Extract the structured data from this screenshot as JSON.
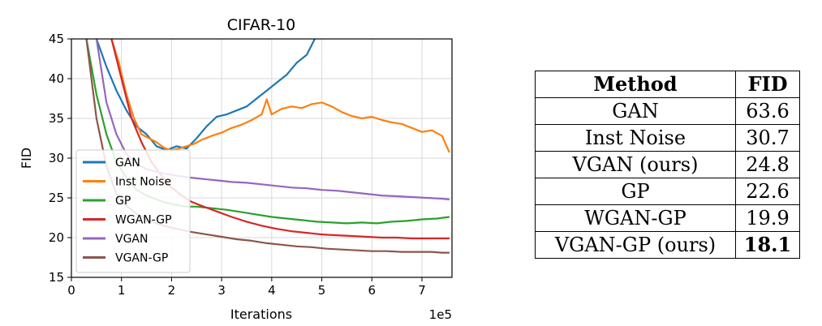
{
  "chart_data": {
    "type": "line",
    "title": "CIFAR-10",
    "xlabel": "Iterations",
    "ylabel": "FID",
    "x_scale_label": "1e5",
    "xlim": [
      0,
      7.6
    ],
    "ylim": [
      15,
      45
    ],
    "x_ticks": [
      0,
      1,
      2,
      3,
      4,
      5,
      6,
      7
    ],
    "y_ticks": [
      15,
      20,
      25,
      30,
      35,
      40,
      45
    ],
    "grid": true,
    "legend_position": "lower-left",
    "series": [
      {
        "name": "GAN",
        "color": "#1f77b4",
        "x": [
          0.5,
          0.7,
          0.9,
          1.1,
          1.3,
          1.5,
          1.7,
          1.9,
          2.1,
          2.3,
          2.5,
          2.7,
          2.9,
          3.1,
          3.3,
          3.5,
          3.7,
          3.9,
          4.1,
          4.3,
          4.5,
          4.7,
          4.9
        ],
        "y": [
          45,
          41.5,
          38.5,
          36,
          34,
          33,
          31.5,
          31,
          31.5,
          31.2,
          32.5,
          34,
          35.2,
          35.5,
          36,
          36.5,
          37.5,
          38.5,
          39.5,
          40.5,
          42,
          43,
          45.5
        ]
      },
      {
        "name": "Inst Noise",
        "color": "#ff7f0e",
        "x": [
          0.8,
          0.95,
          1.1,
          1.25,
          1.4,
          1.55,
          1.7,
          1.85,
          2.0,
          2.15,
          2.3,
          2.45,
          2.6,
          2.8,
          3.0,
          3.2,
          3.4,
          3.6,
          3.8,
          3.9,
          4.0,
          4.2,
          4.4,
          4.6,
          4.8,
          5.0,
          5.2,
          5.4,
          5.6,
          5.8,
          6.0,
          6.2,
          6.4,
          6.6,
          6.8,
          7.0,
          7.2,
          7.4,
          7.55
        ],
        "y": [
          45,
          42,
          38,
          35,
          33,
          32.5,
          32,
          31.3,
          31,
          31.2,
          31.5,
          31.8,
          32.3,
          32.8,
          33.2,
          33.8,
          34.2,
          34.8,
          35.5,
          37.4,
          35.5,
          36.2,
          36.5,
          36.3,
          36.8,
          37,
          36.5,
          35.8,
          35.3,
          35,
          35.2,
          34.8,
          34.5,
          34.3,
          33.8,
          33.3,
          33.5,
          32.8,
          30.7
        ]
      },
      {
        "name": "GP",
        "color": "#2ca02c",
        "x": [
          0.3,
          0.5,
          0.7,
          0.9,
          1.1,
          1.3,
          1.5,
          1.7,
          1.9,
          2.1,
          2.3,
          2.5,
          2.8,
          3.1,
          3.4,
          3.7,
          4.0,
          4.3,
          4.6,
          4.9,
          5.2,
          5.5,
          5.8,
          6.1,
          6.4,
          6.7,
          7.0,
          7.3,
          7.55
        ],
        "y": [
          45,
          38,
          33,
          29.5,
          27.5,
          26,
          25.3,
          24.8,
          24.4,
          24.1,
          23.9,
          23.9,
          23.7,
          23.5,
          23.2,
          22.9,
          22.6,
          22.4,
          22.2,
          22.0,
          21.9,
          21.8,
          21.9,
          21.8,
          22.0,
          22.1,
          22.3,
          22.4,
          22.6
        ]
      },
      {
        "name": "WGAN-GP",
        "color": "#d62728",
        "x": [
          0.8,
          1.0,
          1.2,
          1.4,
          1.6,
          1.8,
          2.0,
          2.2,
          2.4,
          2.6,
          2.9,
          3.2,
          3.5,
          3.8,
          4.1,
          4.4,
          4.7,
          5.0,
          5.3,
          5.6,
          5.9,
          6.2,
          6.5,
          6.8,
          7.1,
          7.4,
          7.55
        ],
        "y": [
          45,
          40,
          35,
          32,
          29.5,
          27.8,
          26.3,
          25.3,
          24.5,
          24.0,
          23.3,
          22.6,
          22.0,
          21.5,
          21.1,
          20.8,
          20.6,
          20.4,
          20.3,
          20.2,
          20.1,
          20.0,
          20.0,
          19.9,
          19.9,
          19.9,
          19.9
        ]
      },
      {
        "name": "VGAN",
        "color": "#9467bd",
        "x": [
          0.5,
          0.7,
          0.9,
          1.1,
          1.3,
          1.5,
          1.7,
          1.9,
          2.1,
          2.3,
          2.6,
          2.9,
          3.2,
          3.5,
          3.8,
          4.1,
          4.4,
          4.7,
          5.0,
          5.3,
          5.6,
          5.9,
          6.2,
          6.5,
          6.8,
          7.1,
          7.4,
          7.55
        ],
        "y": [
          45,
          37,
          33,
          30.5,
          29.3,
          28.6,
          28.3,
          28.0,
          27.8,
          27.6,
          27.4,
          27.2,
          27.0,
          26.9,
          26.7,
          26.5,
          26.3,
          26.2,
          26.0,
          25.9,
          25.7,
          25.5,
          25.3,
          25.2,
          25.1,
          25.0,
          24.9,
          24.8
        ]
      },
      {
        "name": "VGAN-GP",
        "color": "#8c564b",
        "x": [
          0.3,
          0.5,
          0.7,
          0.9,
          1.1,
          1.3,
          1.5,
          1.7,
          1.9,
          2.1,
          2.4,
          2.7,
          3.0,
          3.3,
          3.6,
          3.9,
          4.2,
          4.5,
          4.8,
          5.1,
          5.4,
          5.7,
          6.0,
          6.3,
          6.6,
          6.9,
          7.2,
          7.4,
          7.55
        ],
        "y": [
          45,
          35,
          29,
          25.5,
          24,
          23,
          22.3,
          21.8,
          21.4,
          21.1,
          20.7,
          20.4,
          20.1,
          19.8,
          19.6,
          19.3,
          19.1,
          18.9,
          18.8,
          18.6,
          18.5,
          18.4,
          18.3,
          18.3,
          18.2,
          18.2,
          18.2,
          18.1,
          18.1
        ]
      }
    ]
  },
  "table": {
    "headers": [
      "Method",
      "FID"
    ],
    "rows": [
      {
        "method": "GAN",
        "fid": "63.6"
      },
      {
        "method": "Inst Noise",
        "fid": "30.7"
      },
      {
        "method": "VGAN (ours)",
        "fid": "24.8"
      },
      {
        "method": "GP",
        "fid": "22.6"
      },
      {
        "method": "WGAN-GP",
        "fid": "19.9"
      },
      {
        "method": "VGAN-GP (ours)",
        "fid": "18.1"
      }
    ]
  }
}
